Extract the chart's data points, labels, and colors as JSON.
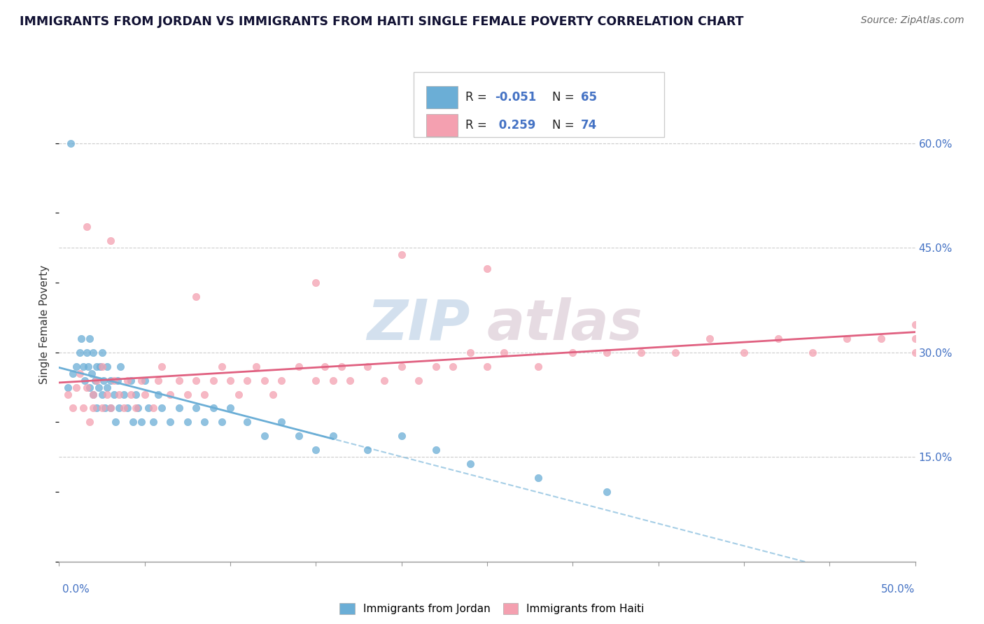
{
  "title": "IMMIGRANTS FROM JORDAN VS IMMIGRANTS FROM HAITI SINGLE FEMALE POVERTY CORRELATION CHART",
  "source_text": "Source: ZipAtlas.com",
  "xlabel_bottom_left": "0.0%",
  "xlabel_bottom_right": "50.0%",
  "ylabel_label": "Single Female Poverty",
  "right_ytick_labels": [
    "60.0%",
    "45.0%",
    "30.0%",
    "15.0%"
  ],
  "right_ytick_values": [
    0.6,
    0.45,
    0.3,
    0.15
  ],
  "xmin": 0.0,
  "xmax": 0.5,
  "ymin": 0.0,
  "ymax": 0.68,
  "color_jordan": "#6baed6",
  "color_haiti": "#f4a0b0",
  "color_haiti_line": "#e06080",
  "color_jordan_line": "#6baed6",
  "watermark_zip": "ZIP",
  "watermark_atlas": "atlas",
  "jordan_x": [
    0.005,
    0.008,
    0.01,
    0.012,
    0.013,
    0.014,
    0.015,
    0.016,
    0.017,
    0.018,
    0.018,
    0.019,
    0.02,
    0.02,
    0.021,
    0.022,
    0.022,
    0.023,
    0.024,
    0.025,
    0.025,
    0.026,
    0.027,
    0.028,
    0.028,
    0.03,
    0.03,
    0.032,
    0.033,
    0.034,
    0.035,
    0.036,
    0.038,
    0.04,
    0.042,
    0.043,
    0.045,
    0.046,
    0.048,
    0.05,
    0.052,
    0.055,
    0.058,
    0.06,
    0.065,
    0.07,
    0.075,
    0.08,
    0.085,
    0.09,
    0.095,
    0.1,
    0.11,
    0.12,
    0.13,
    0.14,
    0.15,
    0.16,
    0.18,
    0.2,
    0.22,
    0.24,
    0.28,
    0.32,
    0.007
  ],
  "jordan_y": [
    0.25,
    0.27,
    0.28,
    0.3,
    0.32,
    0.28,
    0.26,
    0.3,
    0.28,
    0.25,
    0.32,
    0.27,
    0.24,
    0.3,
    0.26,
    0.28,
    0.22,
    0.25,
    0.28,
    0.24,
    0.3,
    0.26,
    0.22,
    0.25,
    0.28,
    0.22,
    0.26,
    0.24,
    0.2,
    0.26,
    0.22,
    0.28,
    0.24,
    0.22,
    0.26,
    0.2,
    0.24,
    0.22,
    0.2,
    0.26,
    0.22,
    0.2,
    0.24,
    0.22,
    0.2,
    0.22,
    0.2,
    0.22,
    0.2,
    0.22,
    0.2,
    0.22,
    0.2,
    0.18,
    0.2,
    0.18,
    0.16,
    0.18,
    0.16,
    0.18,
    0.16,
    0.14,
    0.12,
    0.1,
    0.6
  ],
  "haiti_x": [
    0.005,
    0.008,
    0.01,
    0.012,
    0.014,
    0.016,
    0.018,
    0.02,
    0.02,
    0.022,
    0.025,
    0.025,
    0.028,
    0.03,
    0.032,
    0.035,
    0.038,
    0.04,
    0.042,
    0.045,
    0.048,
    0.05,
    0.055,
    0.058,
    0.06,
    0.065,
    0.07,
    0.075,
    0.08,
    0.085,
    0.09,
    0.095,
    0.1,
    0.105,
    0.11,
    0.115,
    0.12,
    0.125,
    0.13,
    0.14,
    0.15,
    0.155,
    0.16,
    0.165,
    0.17,
    0.18,
    0.19,
    0.2,
    0.21,
    0.22,
    0.23,
    0.24,
    0.25,
    0.26,
    0.28,
    0.3,
    0.32,
    0.34,
    0.36,
    0.38,
    0.4,
    0.42,
    0.44,
    0.46,
    0.48,
    0.5,
    0.5,
    0.5,
    0.016,
    0.03,
    0.2,
    0.25,
    0.15,
    0.08
  ],
  "haiti_y": [
    0.24,
    0.22,
    0.25,
    0.27,
    0.22,
    0.25,
    0.2,
    0.24,
    0.22,
    0.26,
    0.22,
    0.28,
    0.24,
    0.22,
    0.26,
    0.24,
    0.22,
    0.26,
    0.24,
    0.22,
    0.26,
    0.24,
    0.22,
    0.26,
    0.28,
    0.24,
    0.26,
    0.24,
    0.26,
    0.24,
    0.26,
    0.28,
    0.26,
    0.24,
    0.26,
    0.28,
    0.26,
    0.24,
    0.26,
    0.28,
    0.26,
    0.28,
    0.26,
    0.28,
    0.26,
    0.28,
    0.26,
    0.28,
    0.26,
    0.28,
    0.28,
    0.3,
    0.28,
    0.3,
    0.28,
    0.3,
    0.3,
    0.3,
    0.3,
    0.32,
    0.3,
    0.32,
    0.3,
    0.32,
    0.32,
    0.34,
    0.32,
    0.3,
    0.48,
    0.46,
    0.44,
    0.42,
    0.4,
    0.38
  ]
}
